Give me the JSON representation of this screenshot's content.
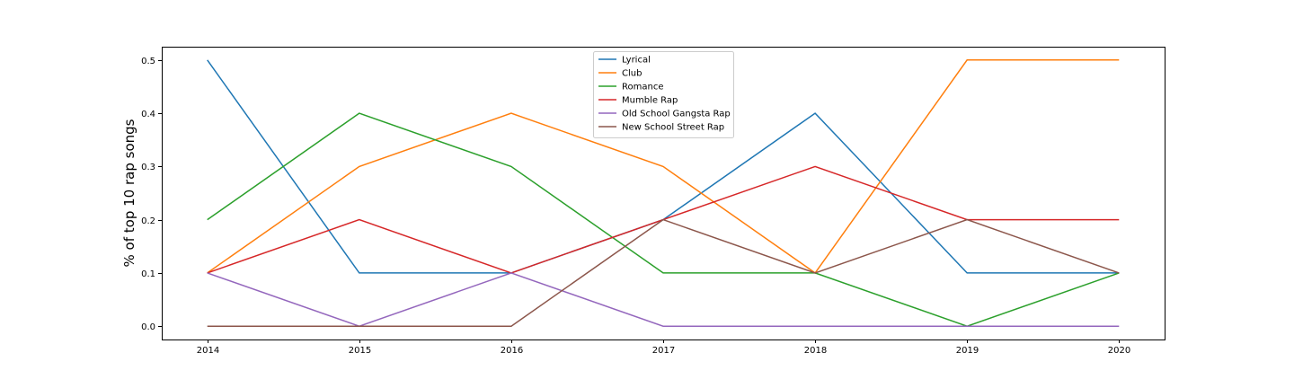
{
  "chart_data": {
    "type": "line",
    "title": "",
    "xlabel": "",
    "ylabel": "% of top 10 rap songs",
    "x": [
      2014,
      2015,
      2016,
      2017,
      2018,
      2019,
      2020
    ],
    "xlim": [
      2013.7,
      2020.3
    ],
    "ylim": [
      -0.025,
      0.525
    ],
    "yticks": [
      0.0,
      0.1,
      0.2,
      0.3,
      0.4,
      0.5
    ],
    "grid": false,
    "legend_position": "top-center",
    "series": [
      {
        "name": "Lyrical",
        "color": "#1f77b4",
        "values": [
          0.5,
          0.1,
          0.1,
          0.2,
          0.4,
          0.1,
          0.1
        ]
      },
      {
        "name": "Club",
        "color": "#ff7f0e",
        "values": [
          0.1,
          0.3,
          0.4,
          0.3,
          0.1,
          0.5,
          0.5
        ]
      },
      {
        "name": "Romance",
        "color": "#2ca02c",
        "values": [
          0.2,
          0.4,
          0.3,
          0.1,
          0.1,
          0.0,
          0.1
        ]
      },
      {
        "name": "Mumble Rap",
        "color": "#d62728",
        "values": [
          0.1,
          0.2,
          0.1,
          0.2,
          0.3,
          0.2,
          0.2
        ]
      },
      {
        "name": "Old School Gangsta Rap",
        "color": "#9467bd",
        "values": [
          0.1,
          0.0,
          0.1,
          0.0,
          0.0,
          0.0,
          0.0
        ]
      },
      {
        "name": "New School Street Rap",
        "color": "#8c564b",
        "values": [
          0.0,
          0.0,
          0.0,
          0.2,
          0.1,
          0.2,
          0.1
        ]
      }
    ]
  }
}
